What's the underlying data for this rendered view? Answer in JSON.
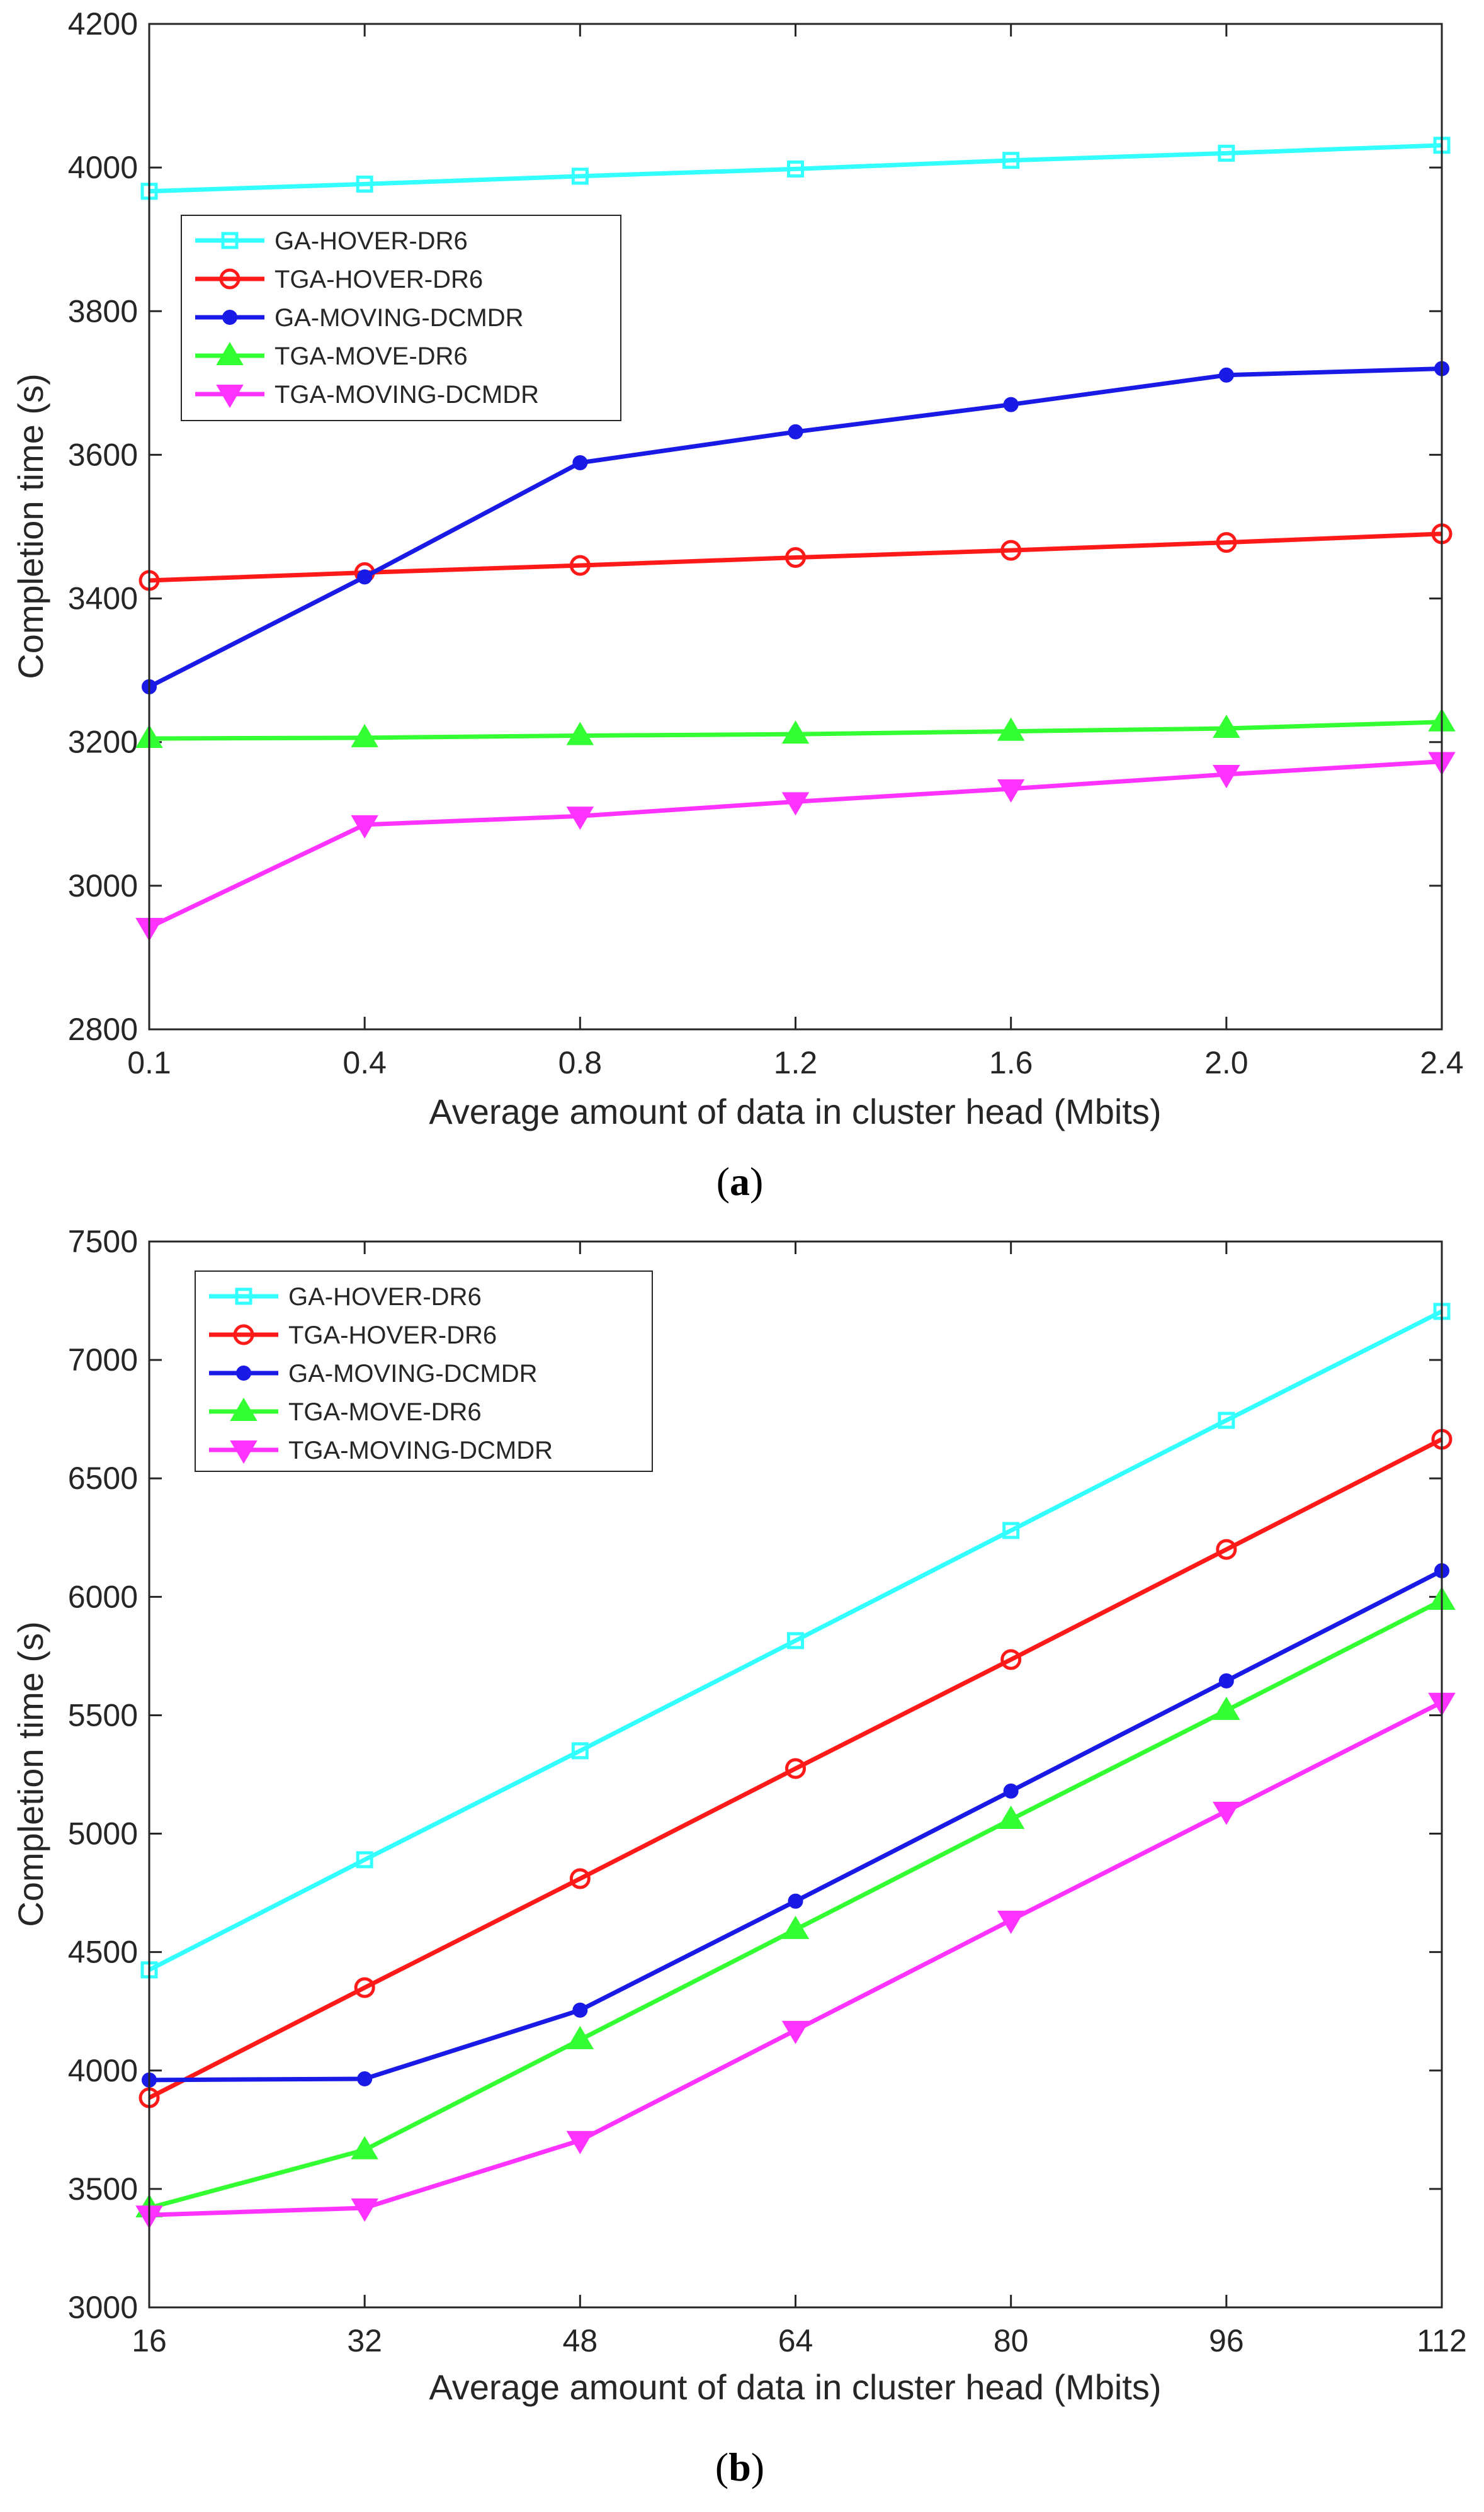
{
  "chart_data": [
    {
      "type": "line",
      "caption_letter": "a",
      "xlabel": "Average amount of data in cluster head (Mbits)",
      "ylabel": "Completion time (s)",
      "categories": [
        "0.1",
        "0.4",
        "0.8",
        "1.2",
        "1.6",
        "2.0",
        "2.4"
      ],
      "ylim": [
        2800,
        4200
      ],
      "yticks": [
        2800,
        3000,
        3200,
        3400,
        3600,
        3800,
        4000,
        4200
      ],
      "legend_position": "upper-left",
      "series": [
        {
          "name": "GA-HOVER-DR6",
          "color": "#33FFFF",
          "marker": "square",
          "values": [
            3967,
            3977,
            3988,
            3998,
            4010,
            4020,
            4031
          ]
        },
        {
          "name": "TGA-HOVER-DR6",
          "color": "#FF1A1A",
          "marker": "circle",
          "values": [
            3425,
            3436,
            3446,
            3457,
            3467,
            3478,
            3490
          ]
        },
        {
          "name": "GA-MOVING-DCMDR",
          "color": "#1A1AE6",
          "marker": "dot",
          "values": [
            3277,
            3430,
            3589,
            3632,
            3670,
            3711,
            3720
          ]
        },
        {
          "name": "TGA-MOVE-DR6",
          "color": "#33FF33",
          "marker": "triangle-up",
          "values": [
            3205,
            3206,
            3209,
            3211,
            3215,
            3219,
            3228
          ]
        },
        {
          "name": "TGA-MOVING-DCMDR",
          "color": "#FF33FF",
          "marker": "triangle-down",
          "values": [
            2942,
            3085,
            3097,
            3117,
            3135,
            3155,
            3173
          ]
        }
      ]
    },
    {
      "type": "line",
      "caption_letter": "b",
      "xlabel": "Average amount of data in cluster head (Mbits)",
      "ylabel": "Completion time (s)",
      "categories": [
        "16",
        "32",
        "48",
        "64",
        "80",
        "96",
        "112"
      ],
      "ylim": [
        3000,
        7500
      ],
      "yticks": [
        3000,
        3500,
        4000,
        4500,
        5000,
        5500,
        6000,
        6500,
        7000,
        7500
      ],
      "legend_position": "upper-left",
      "series": [
        {
          "name": "GA-HOVER-DR6",
          "color": "#33FFFF",
          "marker": "square",
          "values": [
            4425,
            4890,
            5350,
            5815,
            6280,
            6745,
            7205
          ]
        },
        {
          "name": "TGA-HOVER-DR6",
          "color": "#FF1A1A",
          "marker": "circle",
          "values": [
            3885,
            4350,
            4810,
            5275,
            5735,
            6200,
            6665
          ]
        },
        {
          "name": "GA-MOVING-DCMDR",
          "color": "#1A1AE6",
          "marker": "dot",
          "values": [
            3960,
            3965,
            4255,
            4715,
            5180,
            5645,
            6110
          ]
        },
        {
          "name": "TGA-MOVE-DR6",
          "color": "#33FF33",
          "marker": "triangle-up",
          "values": [
            3420,
            3665,
            4130,
            4595,
            5060,
            5520,
            5985
          ]
        },
        {
          "name": "TGA-MOVING-DCMDR",
          "color": "#FF33FF",
          "marker": "triangle-down",
          "values": [
            3390,
            3420,
            3705,
            4170,
            4635,
            5095,
            5555
          ]
        }
      ]
    }
  ]
}
